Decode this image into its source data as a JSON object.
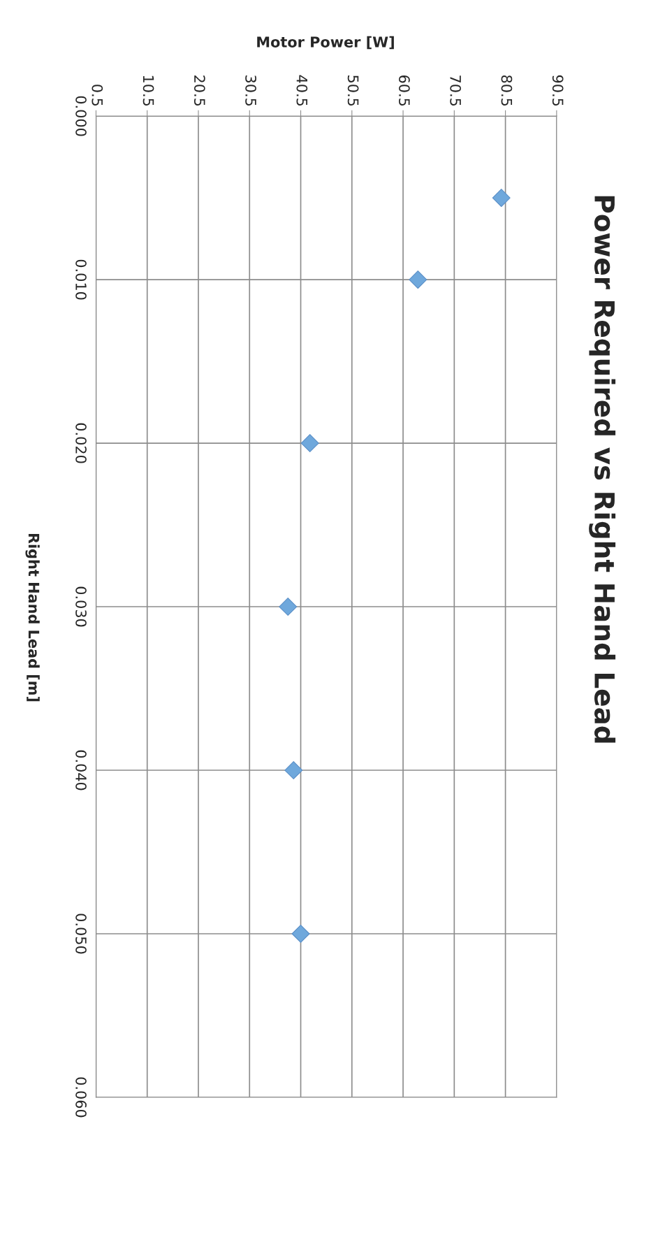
{
  "chart_data": {
    "type": "scatter",
    "title": "Power Required vs Right Hand Lead",
    "xlabel": "Motor Power [W]",
    "ylabel": "Right Hand Lead [m]",
    "x": [
      79.7,
      63.4,
      42.3,
      38.0,
      39.1,
      40.5
    ],
    "series": [
      {
        "color": "#6fa8dc",
        "values": [
          0.005,
          0.01,
          0.02,
          0.03,
          0.04,
          0.05
        ]
      }
    ],
    "ylim": [
      0.06,
      0
    ],
    "yticks": [
      {
        "value": 0,
        "label": "0.000"
      },
      {
        "value": 0.01,
        "label": "0.010"
      },
      {
        "value": 0.02,
        "label": "0.020"
      },
      {
        "value": 0.03,
        "label": "0.030"
      },
      {
        "value": 0.04,
        "label": "0.040"
      },
      {
        "value": 0.05,
        "label": "0.050"
      },
      {
        "value": 0.06,
        "label": "0.060"
      }
    ],
    "xlim": [
      0.5,
      90.5
    ],
    "xticks": [
      0.5,
      10.5,
      20.5,
      30.5,
      40.5,
      50.5,
      60.5,
      70.5,
      80.5,
      90.5
    ],
    "grid": true,
    "marker": "diamond"
  }
}
